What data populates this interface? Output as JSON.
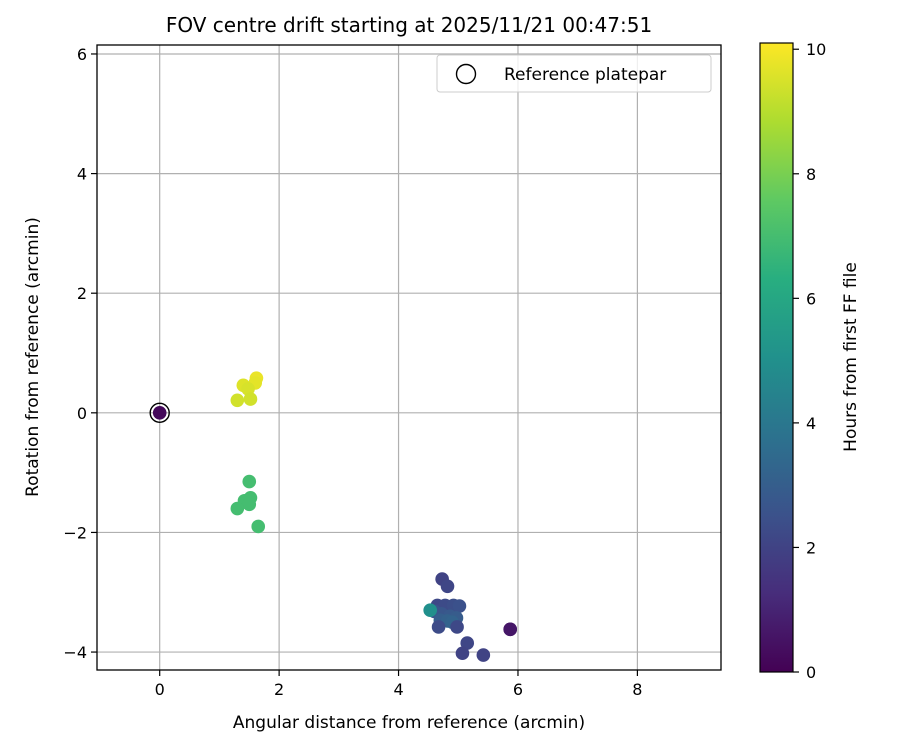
{
  "chart_data": {
    "type": "scatter",
    "title": "FOV centre drift starting at 2025/11/21 00:47:51",
    "xlabel": "Angular distance from reference (arcmin)",
    "ylabel": "Rotation from reference (arcmin)",
    "xlim": [
      -1.05,
      9.4
    ],
    "ylim": [
      -4.3,
      6.15
    ],
    "xticks": [
      0,
      2,
      4,
      6,
      8
    ],
    "yticks": [
      -4,
      -2,
      0,
      2,
      4,
      6
    ],
    "xtick_labels": [
      "0",
      "2",
      "4",
      "6",
      "8"
    ],
    "ytick_labels": [
      "−4",
      "−2",
      "0",
      "2",
      "4",
      "6"
    ],
    "grid": true,
    "colorbar": {
      "label": "Hours from first FF file",
      "range": [
        0,
        10.1
      ],
      "ticks": [
        0,
        2,
        4,
        6,
        8,
        10
      ],
      "tick_labels": [
        "0",
        "2",
        "4",
        "6",
        "8",
        "10"
      ],
      "colormap": "viridis"
    },
    "reference": {
      "label": "Reference platepar",
      "x": 0,
      "y": 0
    },
    "legend_position": "upper right",
    "points": [
      {
        "x": 0.0,
        "y": 0.0,
        "c": 0.2
      },
      {
        "x": 5.87,
        "y": -3.62,
        "c": 0.4
      },
      {
        "x": 5.87,
        "y": -3.62,
        "c": 0.6
      },
      {
        "x": 4.73,
        "y": -2.78,
        "c": 2.0
      },
      {
        "x": 4.82,
        "y": -2.9,
        "c": 2.1
      },
      {
        "x": 4.65,
        "y": -3.22,
        "c": 2.2
      },
      {
        "x": 4.78,
        "y": -3.22,
        "c": 2.3
      },
      {
        "x": 4.92,
        "y": -3.22,
        "c": 2.4
      },
      {
        "x": 5.02,
        "y": -3.23,
        "c": 2.5
      },
      {
        "x": 4.6,
        "y": -3.32,
        "c": 2.6
      },
      {
        "x": 4.72,
        "y": -3.36,
        "c": 2.7
      },
      {
        "x": 4.86,
        "y": -3.4,
        "c": 2.8
      },
      {
        "x": 4.97,
        "y": -3.43,
        "c": 2.9
      },
      {
        "x": 4.7,
        "y": -3.47,
        "c": 3.0
      },
      {
        "x": 4.82,
        "y": -3.48,
        "c": 3.1
      },
      {
        "x": 4.9,
        "y": -3.5,
        "c": 3.2
      },
      {
        "x": 4.67,
        "y": -3.58,
        "c": 2.3
      },
      {
        "x": 4.98,
        "y": -3.58,
        "c": 2.2
      },
      {
        "x": 5.15,
        "y": -3.85,
        "c": 2.1
      },
      {
        "x": 5.07,
        "y": -4.02,
        "c": 2.0
      },
      {
        "x": 5.42,
        "y": -4.05,
        "c": 2.0
      },
      {
        "x": 4.53,
        "y": -3.3,
        "c": 5.0
      },
      {
        "x": 1.5,
        "y": -1.15,
        "c": 7.0
      },
      {
        "x": 1.42,
        "y": -1.47,
        "c": 7.0
      },
      {
        "x": 1.52,
        "y": -1.42,
        "c": 7.0
      },
      {
        "x": 1.5,
        "y": -1.53,
        "c": 7.0
      },
      {
        "x": 1.3,
        "y": -1.6,
        "c": 7.0
      },
      {
        "x": 1.65,
        "y": -1.9,
        "c": 7.0
      },
      {
        "x": 1.62,
        "y": 0.58,
        "c": 9.8
      },
      {
        "x": 1.6,
        "y": 0.5,
        "c": 9.7
      },
      {
        "x": 1.4,
        "y": 0.46,
        "c": 9.6
      },
      {
        "x": 1.48,
        "y": 0.4,
        "c": 9.5
      },
      {
        "x": 1.3,
        "y": 0.21,
        "c": 9.4
      },
      {
        "x": 1.52,
        "y": 0.23,
        "c": 9.4
      }
    ]
  }
}
